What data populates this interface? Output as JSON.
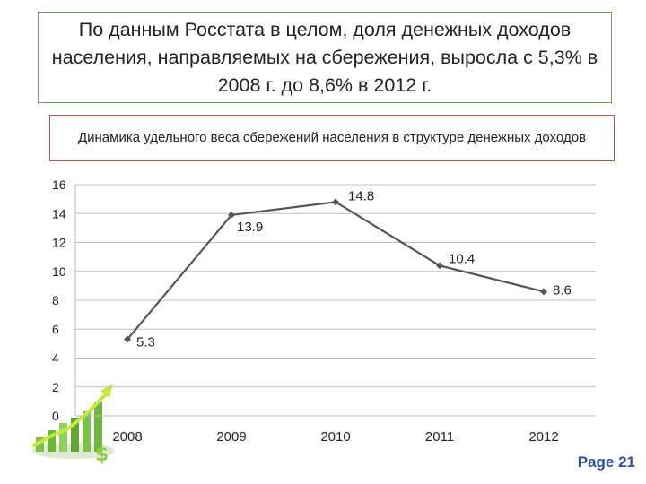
{
  "headline": "По данным Росстата в целом, доля денежных доходов населения, направляемых на сбережения, выросла с 5,3% в 2008 г. до 8,6% в 2012 г.",
  "page_label": "Page 21",
  "colors": {
    "headline_border": "#6aa84f",
    "subtitle_border": "#c0504d",
    "line": "#555555",
    "page_label": "#2e4f9c"
  },
  "chart_data": {
    "type": "line",
    "title": "Динамика удельного веса сбережений населения в структуре денежных доходов",
    "categories": [
      "2008",
      "2009",
      "2010",
      "2011",
      "2012"
    ],
    "series": [
      {
        "values": [
          5.3,
          13.9,
          14.8,
          10.4,
          8.6
        ]
      }
    ],
    "data_labels": [
      "5.3",
      "13.9",
      "14.8",
      "10.4",
      "8.6"
    ],
    "yticks": [
      "0",
      "2",
      "4",
      "6",
      "8",
      "10",
      "12",
      "14",
      "16"
    ],
    "ylim": [
      0,
      16
    ],
    "grid": true,
    "legend": "none",
    "xlabel": "",
    "ylabel": ""
  }
}
